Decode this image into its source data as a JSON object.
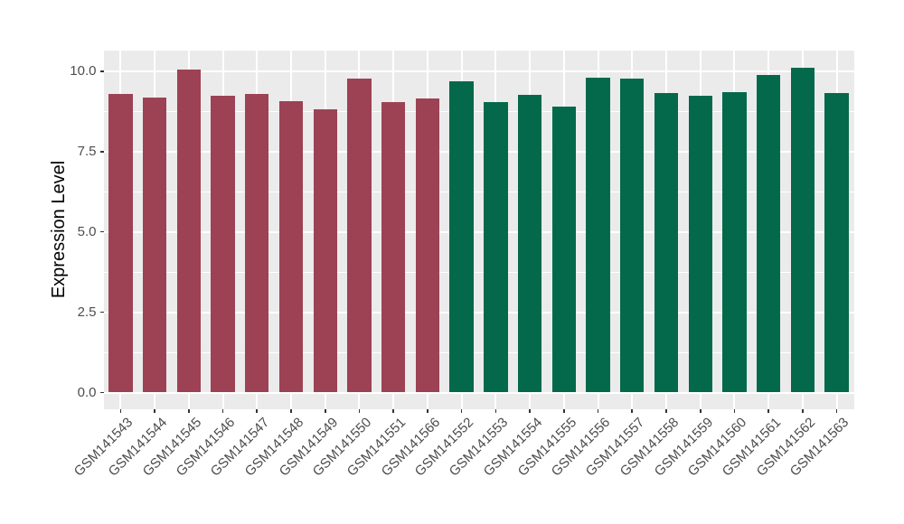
{
  "figure": {
    "background": "#FFFFFF",
    "panel_background": "#EBEBEB",
    "grid_color": "#FFFFFF",
    "axis_text_color": "#4D4D4D",
    "axis_title_color": "#000000",
    "tick_mark_color": "#333333"
  },
  "chart_data": {
    "type": "bar",
    "title": "",
    "xlabel": "",
    "ylabel": "Expression Level",
    "categories": [
      "GSM141543",
      "GSM141544",
      "GSM141545",
      "GSM141546",
      "GSM141547",
      "GSM141548",
      "GSM141549",
      "GSM141550",
      "GSM141551",
      "GSM141566",
      "GSM141552",
      "GSM141553",
      "GSM141554",
      "GSM141555",
      "GSM141556",
      "GSM141557",
      "GSM141558",
      "GSM141559",
      "GSM141560",
      "GSM141561",
      "GSM141562",
      "GSM141563"
    ],
    "values": [
      9.28,
      9.17,
      10.06,
      9.23,
      9.3,
      9.08,
      8.82,
      9.76,
      9.04,
      9.15,
      9.69,
      9.05,
      9.27,
      8.89,
      9.81,
      9.76,
      9.32,
      9.23,
      9.34,
      9.89,
      10.12,
      9.31
    ],
    "groups": [
      "group1",
      "group1",
      "group1",
      "group1",
      "group1",
      "group1",
      "group1",
      "group1",
      "group1",
      "group1",
      "group2",
      "group2",
      "group2",
      "group2",
      "group2",
      "group2",
      "group2",
      "group2",
      "group2",
      "group2",
      "group2",
      "group2"
    ],
    "group_colors": {
      "group1": "#9C4254",
      "group2": "#03694A"
    },
    "ylim": [
      0,
      10.65
    ],
    "ytick_labels": [
      "0.0",
      "2.5",
      "5.0",
      "7.5",
      "10.0"
    ],
    "ytick_values": [
      0,
      2.5,
      5,
      7.5,
      10
    ],
    "minor_ytick_values": [
      1.25,
      3.75,
      6.25,
      8.75
    ],
    "x_tick_angle": 45,
    "grid": "major+minor",
    "legend_position": "none"
  }
}
